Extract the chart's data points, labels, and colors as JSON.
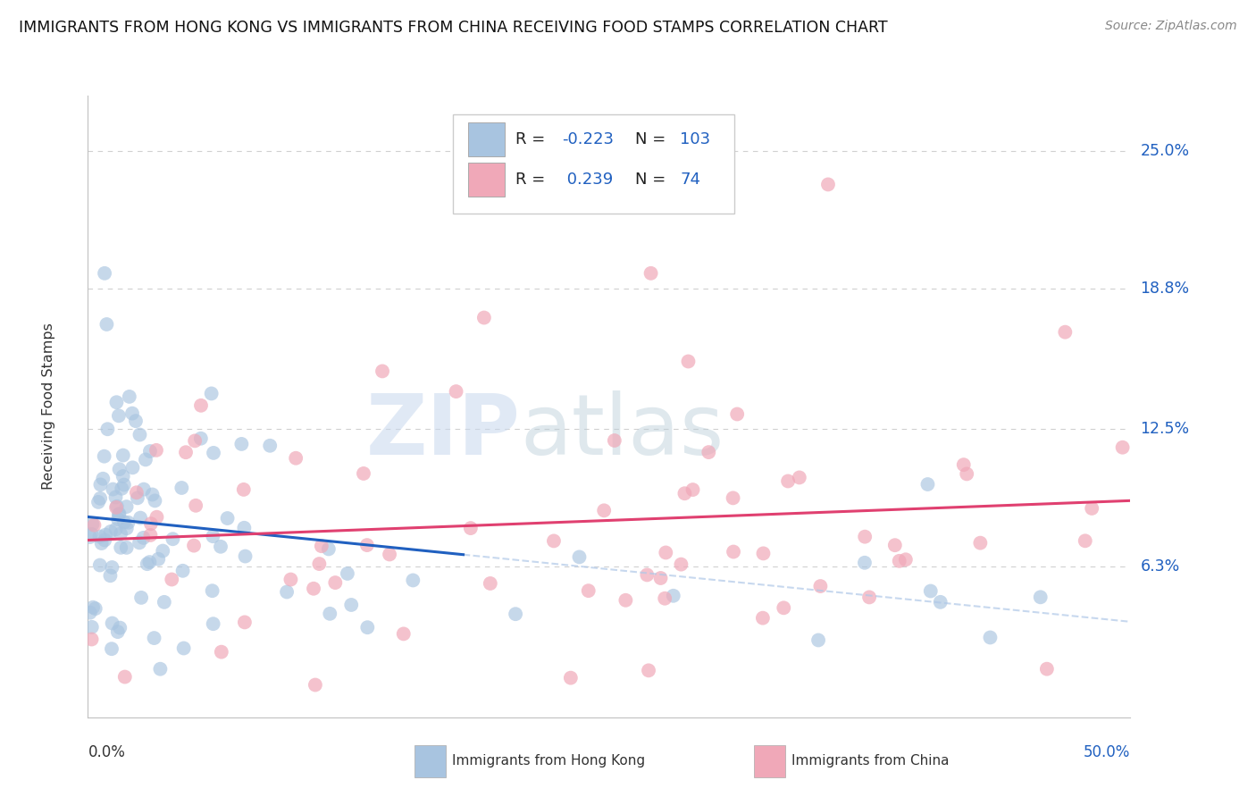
{
  "title": "IMMIGRANTS FROM HONG KONG VS IMMIGRANTS FROM CHINA RECEIVING FOOD STAMPS CORRELATION CHART",
  "source": "Source: ZipAtlas.com",
  "ylabel": "Receiving Food Stamps",
  "y_tick_vals": [
    0.063,
    0.125,
    0.188,
    0.25
  ],
  "y_tick_labels": [
    "6.3%",
    "12.5%",
    "18.8%",
    "25.0%"
  ],
  "x_lim": [
    0.0,
    0.5
  ],
  "y_lim": [
    -0.005,
    0.275
  ],
  "hk_R": -0.223,
  "hk_N": 103,
  "china_R": 0.239,
  "china_N": 74,
  "hk_color": "#a8c4e0",
  "china_color": "#f0a8b8",
  "hk_line_color": "#2060c0",
  "hk_line_dash_color": "#b0c8e8",
  "china_line_color": "#e04070",
  "watermark_zip_color": "#c0cfe8",
  "watermark_atlas_color": "#b8c8d8",
  "background_color": "#ffffff",
  "grid_color": "#d0d0d0",
  "title_fontsize": 12.5,
  "source_fontsize": 10,
  "legend_R_color": "#222222",
  "legend_val_color": "#2060c0",
  "xlabel_left_color": "#333333",
  "xlabel_right_color": "#2060c0",
  "ylabel_color": "#333333"
}
